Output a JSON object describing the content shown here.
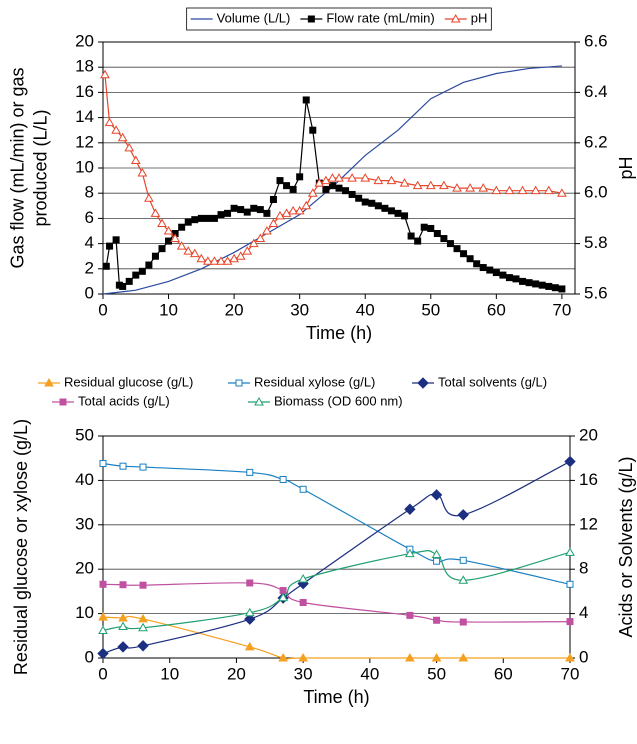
{
  "chart_data": [
    {
      "type": "line",
      "ylabel": [
        "Gas flow (mL/min) or gas",
        "produced (L/L)"
      ],
      "y2label": "pH",
      "xlabel": "Time (h)",
      "xlim": [
        0,
        72
      ],
      "xticks": [
        0,
        10,
        20,
        30,
        40,
        50,
        60,
        70
      ],
      "ylim": [
        0,
        20
      ],
      "yticks": [
        0,
        2,
        4,
        6,
        8,
        10,
        12,
        14,
        16,
        18,
        20
      ],
      "y2lim": [
        5.6,
        6.6
      ],
      "y2ticks": [
        5.6,
        5.8,
        {
          "value": 6,
          "label": "6.0"
        },
        6.2,
        6.4,
        6.6
      ],
      "grid": true,
      "smooth": false,
      "legend": "top",
      "series": [
        {
          "name": "Volume (L/L)",
          "color": "#2b4aa0",
          "marker": "none",
          "filled": false,
          "x": [
            0,
            5,
            10,
            15,
            20,
            25,
            30,
            35,
            40,
            45,
            50,
            55,
            60,
            65,
            70
          ],
          "values": [
            0,
            0.3,
            1.0,
            2.0,
            3.3,
            4.8,
            6.3,
            8.5,
            11.0,
            13.0,
            15.5,
            16.8,
            17.5,
            17.9,
            18.1
          ]
        },
        {
          "name": "Flow rate (mL/min)",
          "color": "#000000",
          "marker": "square",
          "filled": true,
          "x": [
            0.5,
            1,
            2,
            2.5,
            3,
            4,
            5,
            6,
            7,
            8,
            9,
            10,
            11,
            12,
            13,
            14,
            15,
            16,
            17,
            18,
            19,
            20,
            21,
            22,
            23,
            24,
            25,
            26,
            27,
            28,
            29,
            30,
            31,
            32,
            33,
            34,
            35,
            36,
            37,
            38,
            39,
            40,
            41,
            42,
            43,
            44,
            45,
            46,
            47,
            48,
            49,
            50,
            51,
            52,
            53,
            54,
            55,
            56,
            57,
            58,
            59,
            60,
            61,
            62,
            63,
            64,
            65,
            66,
            67,
            68,
            69,
            70
          ],
          "values": [
            2.2,
            3.8,
            4.3,
            0.7,
            0.6,
            1.0,
            1.5,
            1.8,
            2.3,
            3.0,
            3.6,
            4.2,
            4.8,
            5.3,
            5.7,
            5.9,
            6.0,
            6.0,
            6.0,
            6.3,
            6.4,
            6.8,
            6.7,
            6.5,
            6.8,
            6.7,
            6.4,
            7.5,
            9.0,
            8.6,
            8.3,
            9.3,
            15.4,
            13.0,
            8.8,
            8.3,
            8.6,
            8.4,
            8.2,
            7.9,
            7.6,
            7.3,
            7.2,
            7.0,
            6.8,
            6.6,
            6.4,
            6.2,
            4.6,
            4.2,
            5.3,
            5.2,
            4.8,
            4.4,
            4.0,
            3.6,
            3.2,
            2.8,
            2.4,
            2.1,
            1.9,
            1.7,
            1.5,
            1.3,
            1.2,
            1.0,
            0.9,
            0.8,
            0.7,
            0.6,
            0.5,
            0.4
          ]
        },
        {
          "name": "pH",
          "color": "#e8452a",
          "marker": "triangle",
          "filled": false,
          "axis": "y2",
          "x": [
            0.3,
            1,
            2,
            3,
            4,
            5,
            6,
            7,
            8,
            9,
            10,
            11,
            12,
            13,
            14,
            15,
            16,
            17,
            18,
            19,
            20,
            21,
            22,
            23,
            24,
            25,
            26,
            27,
            28,
            29,
            30,
            31,
            32,
            33,
            34,
            35,
            36,
            38,
            40,
            42,
            44,
            46,
            48,
            50,
            52,
            54,
            56,
            58,
            60,
            62,
            64,
            66,
            68,
            70
          ],
          "values": [
            6.47,
            6.28,
            6.25,
            6.22,
            6.18,
            6.13,
            6.08,
            5.98,
            5.92,
            5.88,
            5.85,
            5.82,
            5.79,
            5.77,
            5.76,
            5.74,
            5.73,
            5.73,
            5.73,
            5.73,
            5.74,
            5.75,
            5.77,
            5.8,
            5.82,
            5.85,
            5.88,
            5.91,
            5.92,
            5.93,
            5.93,
            5.95,
            6.0,
            6.04,
            6.05,
            6.06,
            6.06,
            6.06,
            6.06,
            6.05,
            6.05,
            6.04,
            6.03,
            6.03,
            6.03,
            6.02,
            6.02,
            6.02,
            6.01,
            6.01,
            6.01,
            6.01,
            6.01,
            6.0
          ]
        }
      ]
    },
    {
      "type": "line",
      "ylabel": [
        "Residual glucose or xylose (g/L)"
      ],
      "y2label": "Acids or Solvents (g/L)",
      "xlabel": "Time (h)",
      "xlim": [
        0,
        70
      ],
      "xticks": [
        0,
        10,
        20,
        30,
        40,
        50,
        60,
        70
      ],
      "ylim": [
        0,
        50
      ],
      "yticks": [
        0,
        10,
        20,
        30,
        40,
        50
      ],
      "y2lim": [
        0,
        20
      ],
      "y2ticks": [
        0,
        4,
        8,
        12,
        16,
        20
      ],
      "grid": true,
      "smooth": true,
      "legend": "top",
      "series": [
        {
          "name": "Residual glucose (g/L)",
          "color": "#f5a020",
          "marker": "triangle",
          "filled": true,
          "x": [
            0,
            3,
            6,
            22,
            27,
            30,
            46,
            50,
            54,
            70
          ],
          "values": [
            9.2,
            9.0,
            8.8,
            2.5,
            0,
            0,
            0,
            0,
            0,
            0
          ]
        },
        {
          "name": "Residual xylose (g/L)",
          "color": "#1a7fc1",
          "marker": "square",
          "filled": false,
          "x": [
            0,
            3,
            6,
            22,
            27,
            30,
            46,
            50,
            54,
            70
          ],
          "values": [
            43.8,
            43.2,
            43.0,
            41.8,
            40.2,
            38.0,
            24.5,
            21.8,
            22.0,
            16.6
          ]
        },
        {
          "name": "Total solvents (g/L)",
          "color": "#1c2f80",
          "marker": "diamond",
          "filled": true,
          "axis": "y2",
          "x": [
            0,
            3,
            6,
            22,
            27,
            30,
            46,
            50,
            54,
            70
          ],
          "values": [
            0.4,
            1.0,
            1.1,
            3.5,
            5.4,
            6.7,
            13.4,
            14.7,
            12.9,
            17.7
          ]
        },
        {
          "name": "Total acids (g/L)",
          "color": "#c050a0",
          "marker": "square",
          "filled": true,
          "axis": "y2",
          "x": [
            0,
            3,
            6,
            22,
            27,
            30,
            46,
            50,
            54,
            70
          ],
          "values": [
            6.64,
            6.6,
            6.56,
            6.76,
            6.08,
            5.0,
            3.84,
            3.4,
            3.24,
            3.28
          ]
        },
        {
          "name": "Biomass (OD 600 nm)",
          "color": "#20a070",
          "marker": "triangle",
          "filled": false,
          "x": [
            0,
            3,
            6,
            22,
            27,
            30,
            46,
            50,
            54,
            70
          ],
          "values": [
            6.2,
            7.1,
            6.8,
            10.2,
            13.6,
            17.8,
            23.5,
            23.3,
            17.5,
            23.8
          ]
        }
      ]
    }
  ]
}
